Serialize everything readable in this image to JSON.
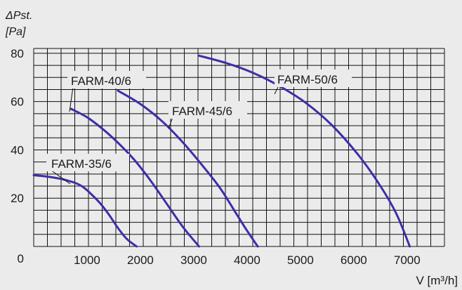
{
  "chart_data": {
    "type": "line",
    "ylabel_line1": "ΔPst.",
    "ylabel_line2": "[Pa]",
    "xlabel": "V [m³/h]",
    "xlim": [
      0,
      7700
    ],
    "ylim": [
      0,
      82
    ],
    "x_ticks": [
      1000,
      2000,
      3000,
      4000,
      5000,
      6000,
      7000
    ],
    "y_ticks": [
      0,
      20,
      40,
      60,
      80
    ],
    "x_tick_labels": [
      "1000",
      "2000",
      "3000",
      "4000",
      "5000",
      "6000",
      "7000"
    ],
    "y_tick_labels": [
      "0",
      "20",
      "40",
      "60",
      "80"
    ],
    "line_color": "#3b2fa8",
    "grid": true,
    "series": [
      {
        "name": "FARM-35/6",
        "x": [
          0,
          300,
          600,
          900,
          1200,
          1400,
          1600,
          1750,
          1930
        ],
        "y": [
          29.5,
          28.8,
          27.5,
          25,
          19,
          13.5,
          7,
          3,
          0
        ]
      },
      {
        "name": "FARM-40/6",
        "x": [
          700,
          1000,
          1300,
          1600,
          1900,
          2200,
          2500,
          2800,
          3100
        ],
        "y": [
          57,
          53.5,
          48.5,
          42.5,
          35.5,
          27,
          17.5,
          8,
          0
        ]
      },
      {
        "name": "FARM-45/6",
        "x": [
          1580,
          2000,
          2400,
          2800,
          3200,
          3500,
          3800,
          4000,
          4200
        ],
        "y": [
          64.5,
          59,
          52,
          43,
          32.5,
          24,
          13.5,
          6.5,
          0
        ]
      },
      {
        "name": "FARM-50/6",
        "x": [
          3100,
          3600,
          4100,
          4600,
          5100,
          5600,
          6100,
          6500,
          6800,
          7050
        ],
        "y": [
          79,
          76,
          72,
          66.5,
          59.5,
          50,
          37.5,
          25,
          13.5,
          0
        ]
      }
    ]
  }
}
